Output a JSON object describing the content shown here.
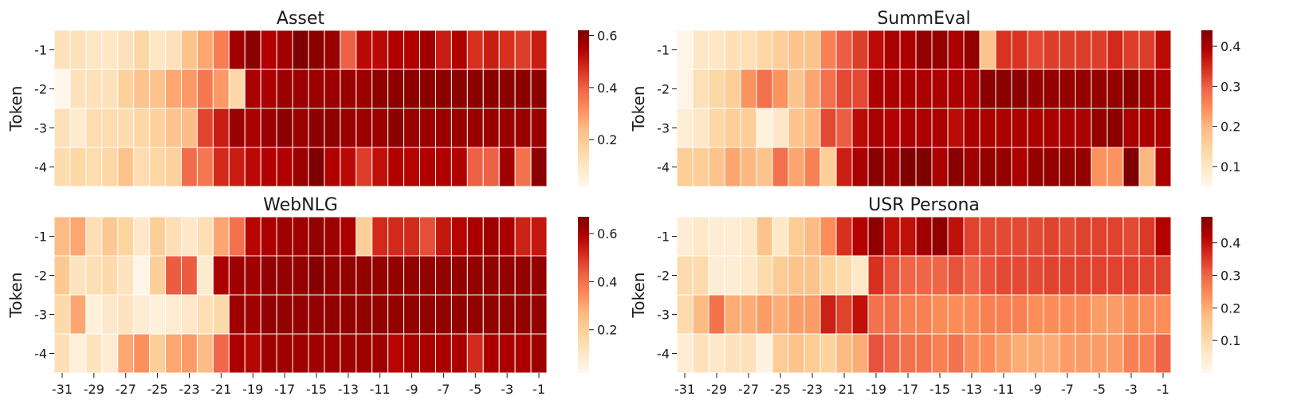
{
  "chart_data": [
    {
      "type": "heatmap",
      "title": "Asset",
      "ylabel": "Token",
      "xlabel": "",
      "x": [
        -31,
        -30,
        -29,
        -28,
        -27,
        -26,
        -25,
        -24,
        -23,
        -22,
        -21,
        -20,
        -19,
        -18,
        -17,
        -16,
        -15,
        -14,
        -13,
        -12,
        -11,
        -10,
        -9,
        -8,
        -7,
        -6,
        -5,
        -4,
        -3,
        -2,
        -1
      ],
      "y": [
        -1,
        -2,
        -3,
        -4
      ],
      "show_xticks": false,
      "colorbar": {
        "min": 0.02,
        "max": 0.62,
        "ticks": [
          0.2,
          0.4,
          0.6
        ],
        "tick_labels": [
          "0.2",
          "0.4",
          "0.6"
        ]
      },
      "values": [
        [
          0.12,
          0.12,
          0.1,
          0.1,
          0.12,
          0.16,
          0.1,
          0.12,
          0.22,
          0.28,
          0.35,
          0.57,
          0.6,
          0.55,
          0.57,
          0.62,
          0.6,
          0.58,
          0.4,
          0.53,
          0.53,
          0.55,
          0.55,
          0.57,
          0.5,
          0.55,
          0.47,
          0.5,
          0.47,
          0.45,
          0.5
        ],
        [
          0.02,
          0.12,
          0.12,
          0.12,
          0.18,
          0.22,
          0.22,
          0.28,
          0.3,
          0.36,
          0.3,
          0.15,
          0.56,
          0.56,
          0.58,
          0.58,
          0.58,
          0.58,
          0.58,
          0.58,
          0.6,
          0.6,
          0.6,
          0.6,
          0.6,
          0.6,
          0.6,
          0.6,
          0.6,
          0.6,
          0.6
        ],
        [
          0.12,
          0.08,
          0.14,
          0.14,
          0.14,
          0.16,
          0.18,
          0.22,
          0.24,
          0.44,
          0.5,
          0.58,
          0.56,
          0.58,
          0.6,
          0.58,
          0.6,
          0.6,
          0.58,
          0.58,
          0.58,
          0.6,
          0.58,
          0.58,
          0.58,
          0.58,
          0.58,
          0.58,
          0.58,
          0.58,
          0.58
        ],
        [
          0.14,
          0.16,
          0.14,
          0.16,
          0.22,
          0.14,
          0.16,
          0.18,
          0.38,
          0.36,
          0.48,
          0.5,
          0.53,
          0.55,
          0.55,
          0.58,
          0.62,
          0.55,
          0.53,
          0.45,
          0.52,
          0.55,
          0.54,
          0.55,
          0.55,
          0.55,
          0.4,
          0.4,
          0.57,
          0.37,
          0.6
        ]
      ]
    },
    {
      "type": "heatmap",
      "title": "SummEval",
      "ylabel": "Token",
      "xlabel": "",
      "x": [
        -31,
        -30,
        -29,
        -28,
        -27,
        -26,
        -25,
        -24,
        -23,
        -22,
        -21,
        -20,
        -19,
        -18,
        -17,
        -16,
        -15,
        -14,
        -13,
        -12,
        -11,
        -10,
        -9,
        -8,
        -7,
        -6,
        -5,
        -4,
        -3,
        -2,
        -1
      ],
      "y": [
        -1,
        -2,
        -3,
        -4
      ],
      "show_xticks": false,
      "colorbar": {
        "min": 0.05,
        "max": 0.44,
        "ticks": [
          0.1,
          0.2,
          0.3,
          0.4
        ],
        "tick_labels": [
          "0.1",
          "0.2",
          "0.3",
          "0.4"
        ]
      },
      "values": [
        [
          0.06,
          0.1,
          0.1,
          0.12,
          0.12,
          0.14,
          0.16,
          0.18,
          0.18,
          0.26,
          0.3,
          0.33,
          0.38,
          0.4,
          0.4,
          0.42,
          0.42,
          0.4,
          0.42,
          0.18,
          0.34,
          0.34,
          0.32,
          0.33,
          0.33,
          0.33,
          0.33,
          0.35,
          0.33,
          0.33,
          0.38
        ],
        [
          0.06,
          0.12,
          0.14,
          0.16,
          0.24,
          0.28,
          0.24,
          0.18,
          0.22,
          0.28,
          0.32,
          0.32,
          0.4,
          0.4,
          0.4,
          0.4,
          0.4,
          0.4,
          0.4,
          0.43,
          0.43,
          0.43,
          0.42,
          0.42,
          0.42,
          0.42,
          0.42,
          0.42,
          0.43,
          0.41,
          0.4
        ],
        [
          0.08,
          0.1,
          0.14,
          0.16,
          0.16,
          0.07,
          0.1,
          0.18,
          0.2,
          0.32,
          0.3,
          0.38,
          0.4,
          0.39,
          0.4,
          0.4,
          0.4,
          0.38,
          0.4,
          0.4,
          0.4,
          0.4,
          0.4,
          0.4,
          0.4,
          0.4,
          0.42,
          0.43,
          0.4,
          0.4,
          0.4
        ],
        [
          0.16,
          0.16,
          0.18,
          0.22,
          0.2,
          0.18,
          0.28,
          0.22,
          0.26,
          0.16,
          0.36,
          0.4,
          0.43,
          0.41,
          0.44,
          0.44,
          0.4,
          0.43,
          0.41,
          0.42,
          0.42,
          0.4,
          0.42,
          0.42,
          0.42,
          0.42,
          0.24,
          0.24,
          0.44,
          0.2,
          0.4
        ]
      ]
    },
    {
      "type": "heatmap",
      "title": "WebNLG",
      "ylabel": "Token",
      "xlabel": "",
      "x": [
        -31,
        -30,
        -29,
        -28,
        -27,
        -26,
        -25,
        -24,
        -23,
        -22,
        -21,
        -20,
        -19,
        -18,
        -17,
        -16,
        -15,
        -14,
        -13,
        -12,
        -11,
        -10,
        -9,
        -8,
        -7,
        -6,
        -5,
        -4,
        -3,
        -2,
        -1
      ],
      "y": [
        -1,
        -2,
        -3,
        -4
      ],
      "show_xticks": true,
      "xtick_labels": [
        "-31",
        "-29",
        "-27",
        "-25",
        "-23",
        "-21",
        "-19",
        "-17",
        "-15",
        "-13",
        "-11",
        "-9",
        "-7",
        "-5",
        "-3",
        "-1"
      ],
      "colorbar": {
        "min": 0.02,
        "max": 0.67,
        "ticks": [
          0.2,
          0.4,
          0.6
        ],
        "tick_labels": [
          "0.2",
          "0.4",
          "0.6"
        ]
      },
      "values": [
        [
          0.26,
          0.3,
          0.14,
          0.22,
          0.18,
          0.1,
          0.2,
          0.14,
          0.1,
          0.14,
          0.3,
          0.4,
          0.58,
          0.6,
          0.62,
          0.62,
          0.64,
          0.62,
          0.6,
          0.2,
          0.52,
          0.52,
          0.52,
          0.46,
          0.55,
          0.58,
          0.6,
          0.62,
          0.6,
          0.53,
          0.55
        ],
        [
          0.22,
          0.12,
          0.14,
          0.16,
          0.12,
          0.03,
          0.2,
          0.44,
          0.44,
          0.08,
          0.6,
          0.62,
          0.62,
          0.64,
          0.64,
          0.64,
          0.66,
          0.64,
          0.64,
          0.64,
          0.64,
          0.64,
          0.64,
          0.64,
          0.64,
          0.64,
          0.64,
          0.64,
          0.64,
          0.64,
          0.64
        ],
        [
          0.16,
          0.3,
          0.06,
          0.1,
          0.12,
          0.08,
          0.06,
          0.08,
          0.1,
          0.14,
          0.16,
          0.62,
          0.62,
          0.64,
          0.64,
          0.64,
          0.64,
          0.64,
          0.64,
          0.64,
          0.64,
          0.64,
          0.64,
          0.64,
          0.64,
          0.64,
          0.64,
          0.64,
          0.64,
          0.64,
          0.64
        ],
        [
          0.14,
          0.06,
          0.12,
          0.08,
          0.3,
          0.34,
          0.2,
          0.3,
          0.32,
          0.26,
          0.42,
          0.6,
          0.58,
          0.62,
          0.62,
          0.62,
          0.62,
          0.62,
          0.62,
          0.62,
          0.62,
          0.58,
          0.6,
          0.6,
          0.6,
          0.6,
          0.52,
          0.6,
          0.6,
          0.6,
          0.62
        ]
      ]
    },
    {
      "type": "heatmap",
      "title": "USR Persona",
      "ylabel": "Token",
      "xlabel": "",
      "x": [
        -31,
        -30,
        -29,
        -28,
        -27,
        -26,
        -25,
        -24,
        -23,
        -22,
        -21,
        -20,
        -19,
        -18,
        -17,
        -16,
        -15,
        -14,
        -13,
        -12,
        -11,
        -10,
        -9,
        -8,
        -7,
        -6,
        -5,
        -4,
        -3,
        -2,
        -1
      ],
      "y": [
        -1,
        -2,
        -3,
        -4
      ],
      "show_xticks": true,
      "xtick_labels": [
        "-31",
        "-29",
        "-27",
        "-25",
        "-23",
        "-21",
        "-19",
        "-17",
        "-15",
        "-13",
        "-11",
        "-9",
        "-7",
        "-5",
        "-3",
        "-1"
      ],
      "colorbar": {
        "min": 0.0,
        "max": 0.48,
        "ticks": [
          0.1,
          0.2,
          0.3,
          0.4
        ],
        "tick_labels": [
          "0.1",
          "0.2",
          "0.3",
          "0.4"
        ]
      },
      "values": [
        [
          0.04,
          0.06,
          0.04,
          0.04,
          0.06,
          0.16,
          0.06,
          0.14,
          0.18,
          0.24,
          0.36,
          0.42,
          0.46,
          0.4,
          0.4,
          0.44,
          0.46,
          0.4,
          0.34,
          0.33,
          0.33,
          0.33,
          0.33,
          0.34,
          0.33,
          0.34,
          0.34,
          0.34,
          0.33,
          0.35,
          0.42
        ],
        [
          0.1,
          0.1,
          0.04,
          0.04,
          0.06,
          0.1,
          0.14,
          0.16,
          0.16,
          0.12,
          0.1,
          0.06,
          0.36,
          0.32,
          0.3,
          0.3,
          0.3,
          0.32,
          0.3,
          0.32,
          0.33,
          0.33,
          0.33,
          0.34,
          0.34,
          0.34,
          0.34,
          0.34,
          0.34,
          0.34,
          0.34
        ],
        [
          0.1,
          0.18,
          0.28,
          0.2,
          0.2,
          0.22,
          0.2,
          0.22,
          0.22,
          0.38,
          0.34,
          0.4,
          0.28,
          0.28,
          0.26,
          0.26,
          0.24,
          0.24,
          0.24,
          0.26,
          0.26,
          0.26,
          0.24,
          0.24,
          0.24,
          0.24,
          0.22,
          0.22,
          0.24,
          0.24,
          0.24
        ],
        [
          0.04,
          0.08,
          0.06,
          0.08,
          0.08,
          0.02,
          0.14,
          0.16,
          0.14,
          0.12,
          0.18,
          0.2,
          0.32,
          0.3,
          0.28,
          0.28,
          0.26,
          0.28,
          0.24,
          0.24,
          0.22,
          0.2,
          0.2,
          0.2,
          0.22,
          0.22,
          0.22,
          0.22,
          0.26,
          0.26,
          0.3
        ]
      ]
    }
  ]
}
